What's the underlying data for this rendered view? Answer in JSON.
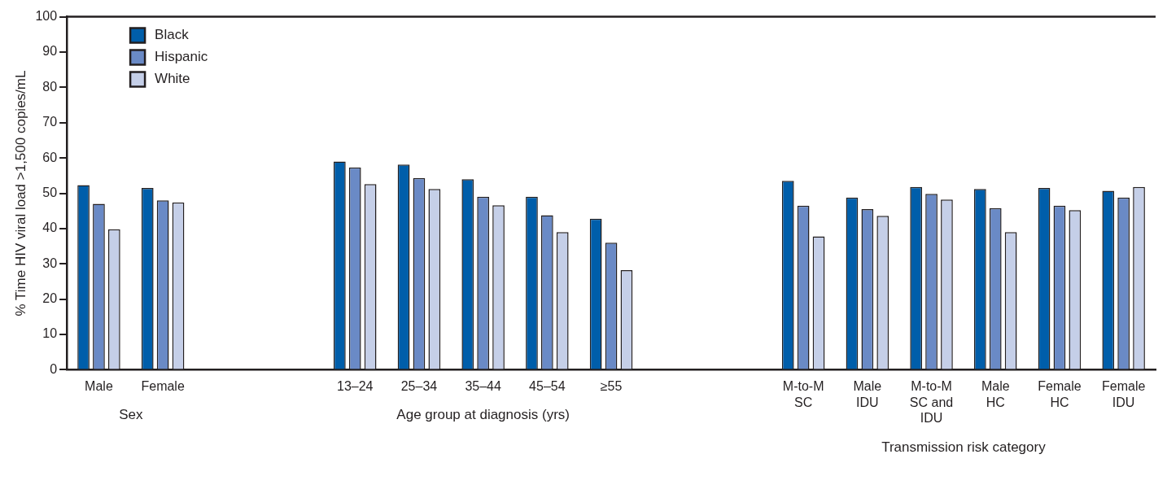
{
  "chart_data": {
    "type": "bar",
    "ylabel": "% Time HIV viral load >1,500 copies/mL",
    "categories": [
      "Male",
      "Female",
      null,
      null,
      "13–24",
      "25–34",
      "35–44",
      "45–54",
      "≥55",
      null,
      null,
      "M-to-M SC",
      "Male IDU",
      "M-to-M SC and IDU",
      "Male HC",
      "Female HC",
      "Female IDU"
    ],
    "series": [
      {
        "name": "Black",
        "color": "#005eaa",
        "values": [
          52.3,
          51.5,
          null,
          null,
          59,
          58.1,
          54,
          49,
          42.8,
          null,
          null,
          53.5,
          48.8,
          51.8,
          51.2,
          51.5,
          50.7
        ]
      },
      {
        "name": "Hispanic",
        "color": "#6a8ac6",
        "values": [
          47,
          48,
          null,
          null,
          57.3,
          54.3,
          49,
          43.8,
          36,
          null,
          null,
          46.5,
          45.5,
          49.8,
          45.8,
          46.5,
          48.8
        ]
      },
      {
        "name": "White",
        "color": "#c5cfe8",
        "values": [
          39.8,
          47.4,
          null,
          null,
          52.6,
          51.2,
          46.6,
          39,
          28.2,
          null,
          null,
          37.8,
          43.6,
          48.2,
          39,
          45.2,
          51.8
        ]
      }
    ],
    "ylim": [
      0,
      100
    ],
    "yticks": [
      0,
      10,
      20,
      30,
      40,
      50,
      60,
      70,
      80,
      90,
      100
    ],
    "annotations": [
      "Sex",
      "Age group at diagnosis (yrs)",
      "Transmission risk category"
    ],
    "legend": "top left",
    "grid": false
  }
}
